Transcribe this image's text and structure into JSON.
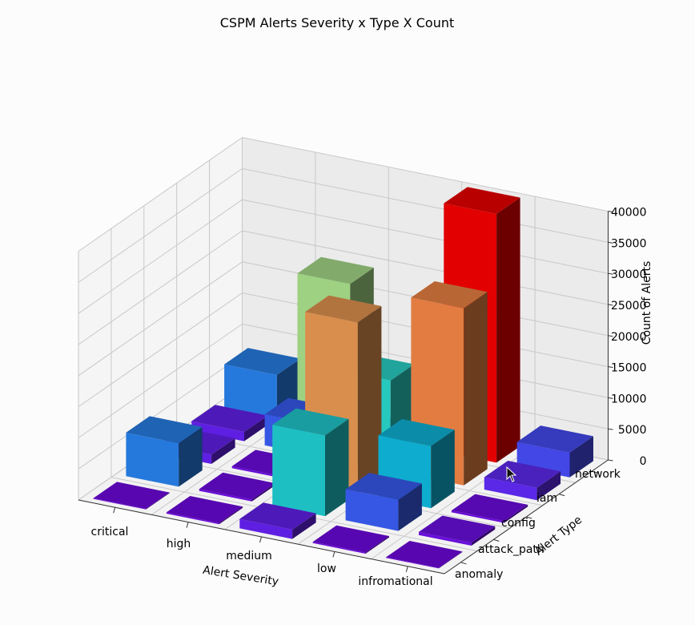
{
  "chart_data": {
    "type": "bar3d",
    "title": "CSPM Alerts Severity x Type X Count",
    "xlabel": "Alert Severity",
    "ylabel": "Alert Type",
    "zlabel": "Count of Alerts",
    "severities": [
      "critical",
      "high",
      "medium",
      "low",
      "infromational"
    ],
    "alert_types": [
      "anomaly",
      "attack_path",
      "config",
      "iam",
      "network"
    ],
    "zticks": [
      "0",
      "5000",
      "10000",
      "15000",
      "20000",
      "25000",
      "30000",
      "35000",
      "40000"
    ],
    "zlim": [
      0,
      40000
    ],
    "colormap": "rainbow",
    "values": [
      [
        100,
        500,
        300,
        2000,
        4000
      ],
      [
        200,
        5000,
        10000,
        28500,
        40000
      ],
      [
        1500,
        13000,
        27500,
        14500,
        1000
      ],
      [
        200,
        300,
        300,
        5000,
        24000
      ],
      [
        100,
        7000,
        1500,
        1500,
        7000
      ]
    ]
  }
}
